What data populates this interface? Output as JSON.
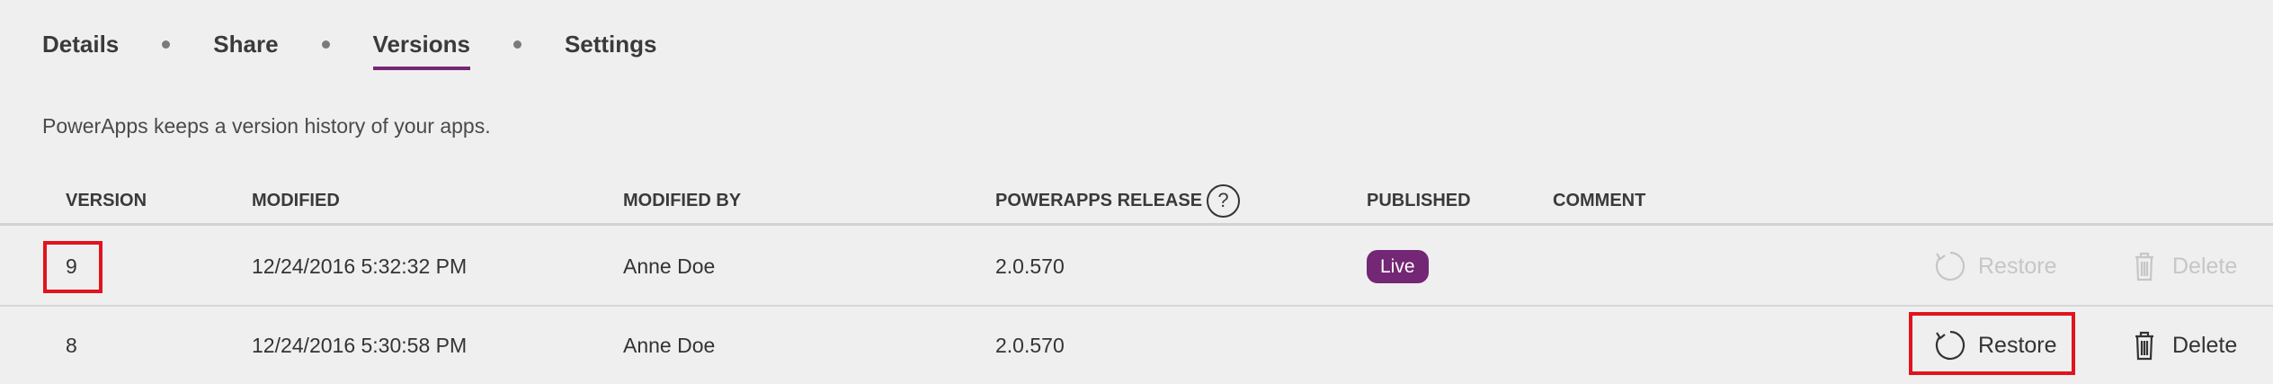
{
  "tabs": [
    {
      "label": "Details"
    },
    {
      "label": "Share"
    },
    {
      "label": "Versions"
    },
    {
      "label": "Settings"
    }
  ],
  "active_tab": "Versions",
  "description": "PowerApps keeps a version history of your apps.",
  "table": {
    "headers": {
      "version": "VERSION",
      "modified": "MODIFIED",
      "modified_by": "MODIFIED BY",
      "release": "POWERAPPS RELEASE",
      "published": "PUBLISHED",
      "comment": "COMMENT"
    },
    "help_glyph": "?",
    "rows": [
      {
        "version": "9",
        "modified": "12/24/2016 5:32:32 PM",
        "modified_by": "Anne Doe",
        "release": "2.0.570",
        "published": "Live",
        "restore_label": "Restore",
        "delete_label": "Delete",
        "actions_enabled": false
      },
      {
        "version": "8",
        "modified": "12/24/2016 5:30:58 PM",
        "modified_by": "Anne Doe",
        "release": "2.0.570",
        "published": "",
        "restore_label": "Restore",
        "delete_label": "Delete",
        "actions_enabled": true
      }
    ]
  },
  "colors": {
    "accent": "#742774",
    "highlight": "#e0141e",
    "disabled": "#c6c6c6"
  },
  "icons": {
    "restore": "restore-icon",
    "delete": "trash-icon",
    "help": "help-circle-icon"
  }
}
